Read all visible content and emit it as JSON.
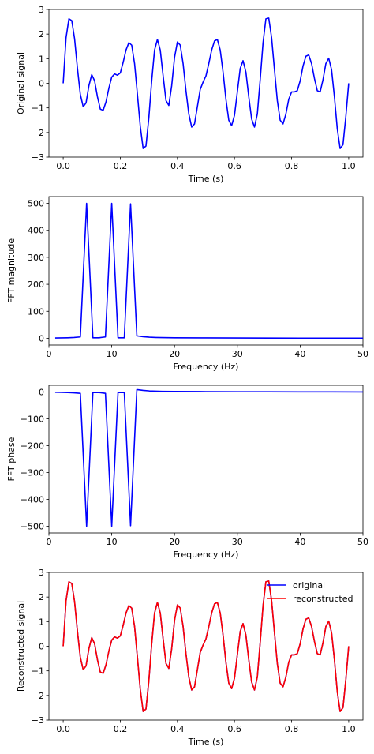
{
  "chart_data": [
    {
      "type": "line",
      "xlabel": "Time (s)",
      "ylabel": "Original signal",
      "xlim": [
        -0.05,
        1.05
      ],
      "ylim": [
        -3,
        3
      ],
      "xticks": [
        0.0,
        0.2,
        0.4,
        0.6,
        0.8,
        1.0
      ],
      "xtick_labels": [
        "0.0",
        "0.2",
        "0.4",
        "0.6",
        "0.8",
        "1.0"
      ],
      "yticks": [
        -3,
        -2,
        -1,
        0,
        1,
        2,
        3
      ],
      "ytick_labels": [
        "−3",
        "−2",
        "−1",
        "0",
        "1",
        "2",
        "3"
      ],
      "grid": false,
      "series": [
        {
          "color": "#0000ff",
          "points": [
            [
              0.0,
              0.0
            ],
            [
              0.01,
              1.85
            ],
            [
              0.02,
              2.62
            ],
            [
              0.03,
              2.55
            ],
            [
              0.04,
              1.8
            ],
            [
              0.05,
              0.6
            ],
            [
              0.06,
              -0.45
            ],
            [
              0.07,
              -0.95
            ],
            [
              0.08,
              -0.8
            ],
            [
              0.09,
              -0.1
            ],
            [
              0.1,
              0.35
            ],
            [
              0.11,
              0.1
            ],
            [
              0.12,
              -0.55
            ],
            [
              0.13,
              -1.05
            ],
            [
              0.14,
              -1.1
            ],
            [
              0.15,
              -0.75
            ],
            [
              0.16,
              -0.2
            ],
            [
              0.17,
              0.25
            ],
            [
              0.18,
              0.38
            ],
            [
              0.19,
              0.33
            ],
            [
              0.2,
              0.42
            ],
            [
              0.21,
              0.85
            ],
            [
              0.22,
              1.35
            ],
            [
              0.23,
              1.65
            ],
            [
              0.24,
              1.55
            ],
            [
              0.25,
              0.8
            ],
            [
              0.26,
              -0.45
            ],
            [
              0.27,
              -1.75
            ],
            [
              0.28,
              -2.65
            ],
            [
              0.29,
              -2.55
            ],
            [
              0.3,
              -1.4
            ],
            [
              0.31,
              0.1
            ],
            [
              0.32,
              1.35
            ],
            [
              0.33,
              1.78
            ],
            [
              0.34,
              1.35
            ],
            [
              0.35,
              0.3
            ],
            [
              0.36,
              -0.7
            ],
            [
              0.37,
              -0.9
            ],
            [
              0.38,
              -0.1
            ],
            [
              0.39,
              1.05
            ],
            [
              0.4,
              1.68
            ],
            [
              0.41,
              1.55
            ],
            [
              0.42,
              0.8
            ],
            [
              0.43,
              -0.3
            ],
            [
              0.44,
              -1.25
            ],
            [
              0.45,
              -1.78
            ],
            [
              0.46,
              -1.65
            ],
            [
              0.47,
              -0.95
            ],
            [
              0.48,
              -0.25
            ],
            [
              0.49,
              0.05
            ],
            [
              0.5,
              0.3
            ],
            [
              0.51,
              0.8
            ],
            [
              0.52,
              1.35
            ],
            [
              0.53,
              1.72
            ],
            [
              0.54,
              1.78
            ],
            [
              0.55,
              1.35
            ],
            [
              0.56,
              0.45
            ],
            [
              0.57,
              -0.65
            ],
            [
              0.58,
              -1.5
            ],
            [
              0.59,
              -1.72
            ],
            [
              0.6,
              -1.3
            ],
            [
              0.61,
              -0.35
            ],
            [
              0.62,
              0.6
            ],
            [
              0.63,
              0.92
            ],
            [
              0.64,
              0.45
            ],
            [
              0.65,
              -0.55
            ],
            [
              0.66,
              -1.45
            ],
            [
              0.67,
              -1.78
            ],
            [
              0.68,
              -1.25
            ],
            [
              0.69,
              0.15
            ],
            [
              0.7,
              1.65
            ],
            [
              0.71,
              2.62
            ],
            [
              0.72,
              2.65
            ],
            [
              0.73,
              1.85
            ],
            [
              0.74,
              0.55
            ],
            [
              0.75,
              -0.7
            ],
            [
              0.76,
              -1.5
            ],
            [
              0.77,
              -1.65
            ],
            [
              0.78,
              -1.25
            ],
            [
              0.79,
              -0.65
            ],
            [
              0.8,
              -0.35
            ],
            [
              0.81,
              -0.35
            ],
            [
              0.82,
              -0.3
            ],
            [
              0.83,
              0.1
            ],
            [
              0.84,
              0.7
            ],
            [
              0.85,
              1.1
            ],
            [
              0.86,
              1.15
            ],
            [
              0.87,
              0.8
            ],
            [
              0.88,
              0.2
            ],
            [
              0.89,
              -0.3
            ],
            [
              0.9,
              -0.35
            ],
            [
              0.91,
              0.15
            ],
            [
              0.92,
              0.8
            ],
            [
              0.93,
              1.02
            ],
            [
              0.94,
              0.55
            ],
            [
              0.95,
              -0.55
            ],
            [
              0.96,
              -1.85
            ],
            [
              0.97,
              -2.65
            ],
            [
              0.98,
              -2.5
            ],
            [
              0.99,
              -1.35
            ],
            [
              1.0,
              0.0
            ]
          ]
        }
      ]
    },
    {
      "type": "line",
      "xlabel": "Frequency (Hz)",
      "ylabel": "FFT magnitude",
      "xlim": [
        0,
        50
      ],
      "ylim": [
        -25,
        525
      ],
      "xticks": [
        0,
        10,
        20,
        30,
        40,
        50
      ],
      "xtick_labels": [
        "0",
        "10",
        "20",
        "30",
        "40",
        "50"
      ],
      "yticks": [
        0,
        100,
        200,
        300,
        400,
        500
      ],
      "ytick_labels": [
        "0",
        "100",
        "200",
        "300",
        "400",
        "500"
      ],
      "grid": false,
      "series": [
        {
          "color": "#0000ff",
          "points": [
            [
              1,
              1
            ],
            [
              2,
              1.5
            ],
            [
              3,
              2
            ],
            [
              4,
              3
            ],
            [
              5,
              5
            ],
            [
              6,
              500
            ],
            [
              7,
              2
            ],
            [
              8,
              2
            ],
            [
              9,
              5
            ],
            [
              10,
              500
            ],
            [
              11,
              2
            ],
            [
              12,
              2
            ],
            [
              13,
              498
            ],
            [
              14,
              9
            ],
            [
              15,
              6
            ],
            [
              16,
              4
            ],
            [
              17,
              3
            ],
            [
              18,
              2.5
            ],
            [
              20,
              2
            ],
            [
              25,
              1.5
            ],
            [
              30,
              1
            ],
            [
              35,
              0.8
            ],
            [
              40,
              0.6
            ],
            [
              45,
              0.4
            ],
            [
              50,
              0.3
            ]
          ]
        }
      ]
    },
    {
      "type": "line",
      "xlabel": "Frequency (Hz)",
      "ylabel": "FFT phase",
      "xlim": [
        0,
        50
      ],
      "ylim": [
        -525,
        25
      ],
      "xticks": [
        0,
        10,
        20,
        30,
        40,
        50
      ],
      "xtick_labels": [
        "0",
        "10",
        "20",
        "30",
        "40",
        "50"
      ],
      "yticks": [
        0,
        -100,
        -200,
        -300,
        -400,
        -500
      ],
      "ytick_labels": [
        "0",
        "−100",
        "−200",
        "−300",
        "−400",
        "−500"
      ],
      "grid": false,
      "series": [
        {
          "color": "#0000ff",
          "points": [
            [
              1,
              -1
            ],
            [
              2,
              -1.5
            ],
            [
              3,
              -2
            ],
            [
              4,
              -3
            ],
            [
              5,
              -5
            ],
            [
              6,
              -500
            ],
            [
              7,
              -2
            ],
            [
              8,
              -2
            ],
            [
              9,
              -5
            ],
            [
              10,
              -500
            ],
            [
              11,
              -2
            ],
            [
              12,
              -2
            ],
            [
              13,
              -498
            ],
            [
              14,
              9
            ],
            [
              15,
              6
            ],
            [
              16,
              4
            ],
            [
              17,
              3
            ],
            [
              18,
              2.5
            ],
            [
              20,
              2
            ],
            [
              25,
              1.5
            ],
            [
              30,
              1
            ],
            [
              35,
              0.8
            ],
            [
              40,
              0.6
            ],
            [
              45,
              0.4
            ],
            [
              50,
              0.3
            ]
          ]
        }
      ]
    },
    {
      "type": "line",
      "xlabel": "Time (s)",
      "ylabel": "Reconstructed signal",
      "xlim": [
        -0.05,
        1.05
      ],
      "ylim": [
        -3,
        3
      ],
      "xticks": [
        0.0,
        0.2,
        0.4,
        0.6,
        0.8,
        1.0
      ],
      "xtick_labels": [
        "0.0",
        "0.2",
        "0.4",
        "0.6",
        "0.8",
        "1.0"
      ],
      "yticks": [
        -3,
        -2,
        -1,
        0,
        1,
        2,
        3
      ],
      "ytick_labels": [
        "−3",
        "−2",
        "−1",
        "0",
        "1",
        "2",
        "3"
      ],
      "grid": false,
      "legend": {
        "placement": "upper-right",
        "entries": [
          {
            "label": "original",
            "color": "#0000ff"
          },
          {
            "label": "reconstructed",
            "color": "#ff0000"
          }
        ]
      },
      "series": [
        {
          "name": "original",
          "color": "#0000ff",
          "points": "same_as_chart_1"
        },
        {
          "name": "reconstructed",
          "color": "#ff0000",
          "points": "same_as_chart_1"
        }
      ]
    }
  ]
}
